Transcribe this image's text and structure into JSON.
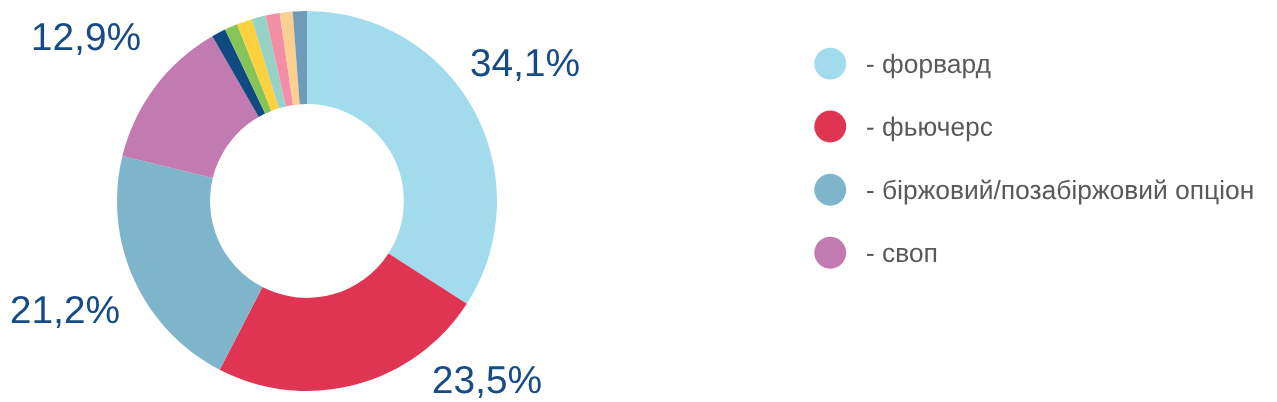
{
  "chart_data": {
    "type": "donut",
    "categories": [
      "- форвард",
      "- фьючерс",
      "- біржовий/позабіржовий опціон",
      "- своп",
      null,
      null,
      null,
      null,
      null,
      null,
      null
    ],
    "values": [
      34.1,
      23.5,
      21.2,
      12.9,
      1.2,
      1.1,
      1.3,
      1.2,
      1.2,
      1.1,
      1.2
    ],
    "colors": [
      "#a2dbeb",
      "#e03552",
      "#7fb5ca",
      "#c27bb1",
      "#114a80",
      "#86c45a",
      "#fdd03e",
      "#96d3c6",
      "#f28fa6",
      "#fbcf8f",
      "#6e9bb8"
    ],
    "value_labels": [
      "34,1%",
      "23,5%",
      "21,2%",
      "12,9%",
      null,
      null,
      null,
      null,
      null,
      null,
      null
    ],
    "legend": "right"
  }
}
